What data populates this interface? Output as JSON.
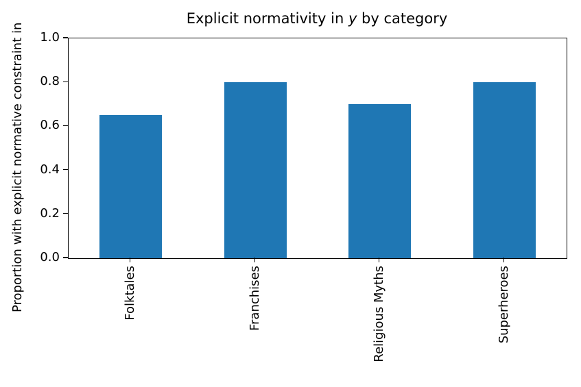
{
  "chart_data": {
    "type": "bar",
    "title": "Explicit normativity in y by category",
    "title_parts": {
      "prefix": "Explicit normativity in ",
      "italic": "y",
      "suffix": " by category"
    },
    "ylabel": "Proportion with explicit normative constraint in",
    "xlabel": "",
    "categories": [
      "Folktales",
      "Franchises",
      "Religious Myths",
      "Superheroes"
    ],
    "values": [
      0.65,
      0.8,
      0.7,
      0.8
    ],
    "ylim": [
      0.0,
      1.0
    ],
    "yticks": [
      0.0,
      0.2,
      0.4,
      0.6,
      0.8,
      1.0
    ],
    "ytick_labels": [
      "0.0",
      "0.2",
      "0.4",
      "0.6",
      "0.8",
      "1.0"
    ],
    "xtick_rotation": 90,
    "grid": false,
    "legend": null,
    "bar_width_fraction": 0.5,
    "bar_color": "#1f77b4"
  },
  "colors": {
    "background": "#ffffff",
    "bar": "#1f77b4",
    "axis": "#000000",
    "text": "#000000"
  }
}
